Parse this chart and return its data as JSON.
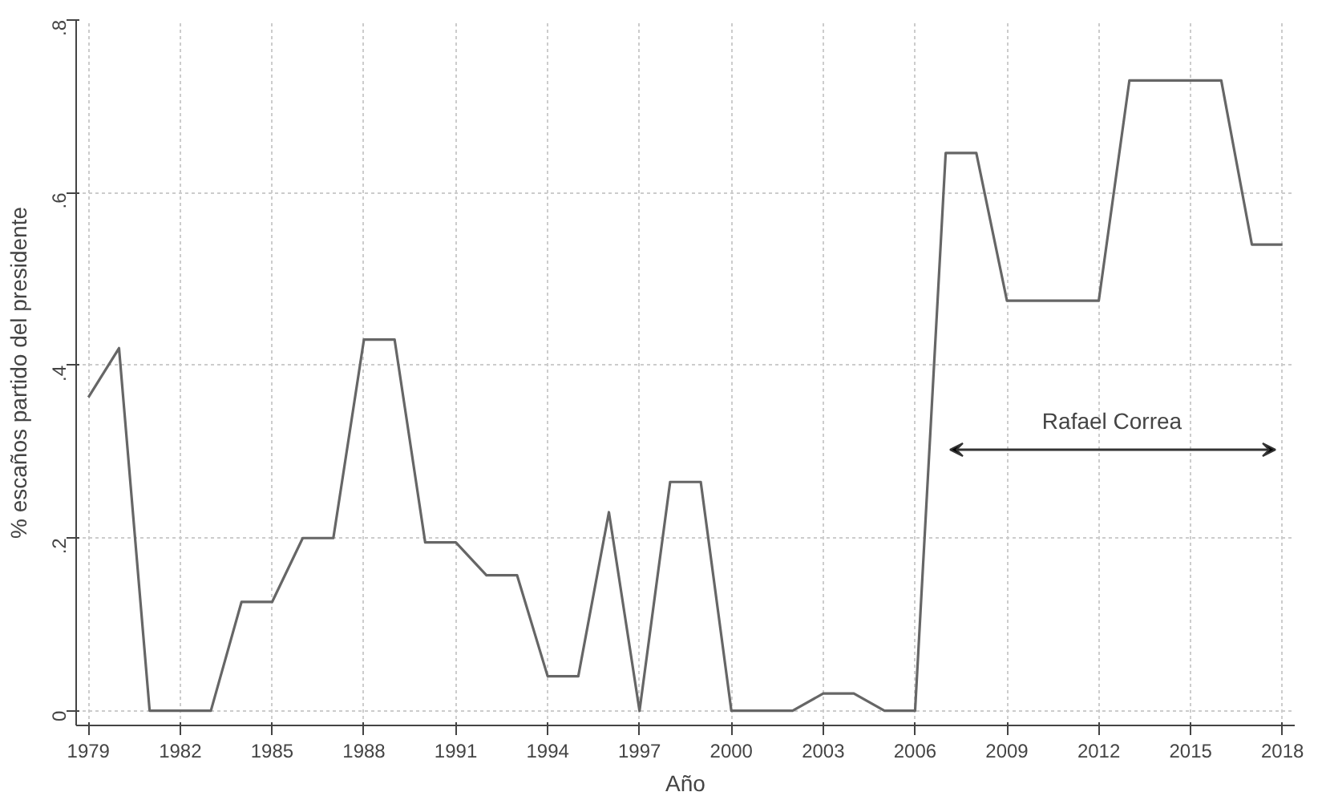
{
  "chart_data": {
    "type": "line",
    "xlabel": "Año",
    "ylabel": "% escaños partido del presidente",
    "x": [
      1979,
      1980,
      1981,
      1982,
      1983,
      1984,
      1985,
      1986,
      1987,
      1988,
      1989,
      1990,
      1991,
      1992,
      1993,
      1994,
      1995,
      1996,
      1997,
      1998,
      1999,
      2000,
      2001,
      2002,
      2003,
      2004,
      2005,
      2006,
      2007,
      2008,
      2009,
      2010,
      2011,
      2012,
      2013,
      2014,
      2015,
      2016,
      2017,
      2018
    ],
    "series": [
      {
        "color": "#666666",
        "values": [
          0.363,
          0.42,
          0,
          0,
          0,
          0.126,
          0.126,
          0.2,
          0.2,
          0.43,
          0.43,
          0.195,
          0.195,
          0.157,
          0.157,
          0.04,
          0.04,
          0.23,
          0,
          0.265,
          0.265,
          0,
          0,
          0,
          0.02,
          0.02,
          0,
          0,
          0.646,
          0.646,
          0.475,
          0.475,
          0.475,
          0.475,
          0.73,
          0.73,
          0.73,
          0.73,
          0.54,
          0.54
        ]
      }
    ],
    "xlim": [
      1978.6,
      2018.4
    ],
    "ylim": [
      -0.017,
      0.8
    ],
    "xticks": [
      1979,
      1982,
      1985,
      1988,
      1991,
      1994,
      1997,
      2000,
      2003,
      2006,
      2009,
      2012,
      2015,
      2018
    ],
    "yticks": [
      {
        "value": 0,
        "label": "0"
      },
      {
        "value": 0.2,
        "label": ".2"
      },
      {
        "value": 0.4,
        "label": ".4"
      },
      {
        "value": 0.6,
        "label": ".6"
      },
      {
        "value": 0.8,
        "label": ".8"
      }
    ],
    "grid": true,
    "line_style": "solid",
    "marker": "none",
    "annotations": [
      "Rafael Correa"
    ]
  }
}
